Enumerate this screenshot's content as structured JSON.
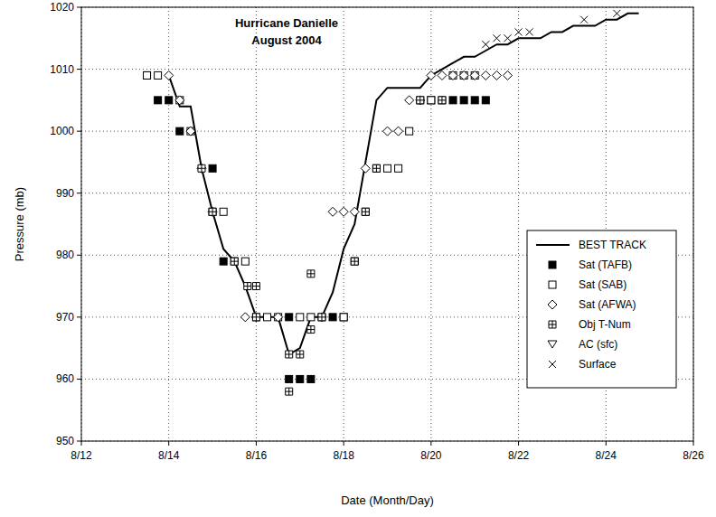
{
  "chart_data": {
    "type": "line",
    "title": "Hurricane Danielle",
    "subtitle": "August 2004",
    "x_label": "Date (Month/Day)",
    "y_label": "Pressure (mb)",
    "xlim": [
      12,
      26
    ],
    "ylim": [
      950,
      1020
    ],
    "xticks": [
      {
        "value": 12,
        "label": "8/12"
      },
      {
        "value": 14,
        "label": "8/14"
      },
      {
        "value": 16,
        "label": "8/16"
      },
      {
        "value": 18,
        "label": "8/18"
      },
      {
        "value": 20,
        "label": "8/20"
      },
      {
        "value": 22,
        "label": "8/22"
      },
      {
        "value": 24,
        "label": "8/24"
      },
      {
        "value": 26,
        "label": "8/26"
      }
    ],
    "yticks": [
      950,
      960,
      970,
      980,
      990,
      1000,
      1010,
      1020
    ],
    "grid": true,
    "legend": "right",
    "series": [
      {
        "name": "BEST TRACK",
        "type": "line",
        "color": "#000000",
        "marker": "none",
        "line_style": "solid",
        "x": [
          14.0,
          14.25,
          14.5,
          14.75,
          15.0,
          15.25,
          15.5,
          15.75,
          16.0,
          16.25,
          16.5,
          16.75,
          17.0,
          17.25,
          17.5,
          17.75,
          18.0,
          18.25,
          18.5,
          18.75,
          19.0,
          19.25,
          19.5,
          19.75,
          20.0,
          20.25,
          20.5,
          20.75,
          21.0,
          21.25,
          21.5,
          21.75,
          22.0,
          22.25,
          22.5,
          22.75,
          23.0,
          23.25,
          23.5,
          23.75,
          24.0,
          24.25,
          24.5,
          24.75
        ],
        "values": [
          1009,
          1004,
          1004,
          994,
          987,
          981,
          979,
          975,
          970,
          970,
          970,
          964,
          965,
          970,
          970,
          974,
          981,
          985,
          995,
          1005,
          1007,
          1007,
          1007,
          1007,
          1009,
          1010,
          1011,
          1012,
          1012,
          1013,
          1014,
          1014,
          1015,
          1015,
          1015,
          1016,
          1016,
          1017,
          1017,
          1017,
          1018,
          1018,
          1019,
          1019
        ]
      },
      {
        "name": "Sat (TAFB)",
        "type": "scatter",
        "color": "#000000",
        "marker": "square-filled",
        "line_style": "none",
        "x": [
          13.5,
          13.75,
          14.0,
          14.25,
          15.0,
          15.25,
          15.5,
          16.75,
          16.75,
          17.0,
          17.25,
          17.75,
          18.0,
          18.25,
          18.5,
          20.0,
          20.25,
          20.5,
          20.75,
          21.0,
          21.25
        ],
        "values": [
          1009,
          1005,
          1005,
          1000,
          994,
          979,
          979,
          970,
          960,
          960,
          960,
          970,
          970,
          979,
          987,
          1005,
          1005,
          1005,
          1005,
          1005,
          1005
        ]
      },
      {
        "name": "Sat (SAB)",
        "type": "scatter",
        "color": "#000000",
        "marker": "square",
        "line_style": "none",
        "x": [
          13.5,
          13.75,
          14.25,
          14.5,
          15.0,
          15.25,
          15.75,
          16.0,
          16.25,
          16.5,
          17.0,
          17.25,
          17.5,
          18.0,
          18.75,
          19.0,
          19.25,
          19.5,
          19.75,
          20.0,
          20.5,
          20.75,
          21.0
        ],
        "values": [
          1009,
          1009,
          1005,
          1000,
          987,
          987,
          979,
          970,
          970,
          970,
          970,
          970,
          970,
          970,
          994,
          994,
          994,
          1000,
          1005,
          1005,
          1009,
          1009,
          1009
        ]
      },
      {
        "name": "Sat (AFWA)",
        "type": "scatter",
        "color": "#000000",
        "marker": "diamond",
        "line_style": "none",
        "x": [
          14.0,
          14.25,
          14.5,
          14.75,
          15.0,
          15.75,
          16.0,
          16.5,
          17.5,
          17.75,
          18.0,
          18.25,
          18.5,
          19.0,
          19.25,
          19.5,
          19.75,
          20.0,
          20.25,
          20.5,
          20.75,
          21.0,
          21.25,
          21.5,
          21.75
        ],
        "values": [
          1009,
          1005,
          1000,
          994,
          987,
          970,
          970,
          970,
          970,
          987,
          987,
          987,
          994,
          1000,
          1000,
          1005,
          1005,
          1009,
          1009,
          1009,
          1009,
          1009,
          1009,
          1009,
          1009
        ]
      },
      {
        "name": "Obj T-Num",
        "type": "scatter",
        "color": "#000000",
        "marker": "square-plus",
        "line_style": "none",
        "x": [
          14.75,
          15.0,
          15.5,
          15.8,
          16.0,
          16.0,
          16.75,
          16.75,
          17.0,
          17.25,
          17.25,
          17.5,
          18.25,
          18.5,
          18.75,
          19.75,
          20.25
        ],
        "values": [
          994,
          987,
          979,
          975,
          975,
          970,
          964,
          958,
          964,
          977,
          968,
          970,
          979,
          987,
          994,
          1005,
          1005
        ]
      },
      {
        "name": "AC (sfc)",
        "type": "scatter",
        "color": "#000000",
        "marker": "triangle-down",
        "line_style": "none",
        "x": [],
        "values": []
      },
      {
        "name": "Surface",
        "type": "scatter",
        "color": "#000000",
        "marker": "x",
        "line_style": "none",
        "x": [
          21.25,
          21.5,
          21.75,
          22.0,
          22.25,
          23.5,
          24.25
        ],
        "values": [
          1014,
          1015,
          1015,
          1016,
          1016,
          1018,
          1019
        ]
      }
    ]
  }
}
